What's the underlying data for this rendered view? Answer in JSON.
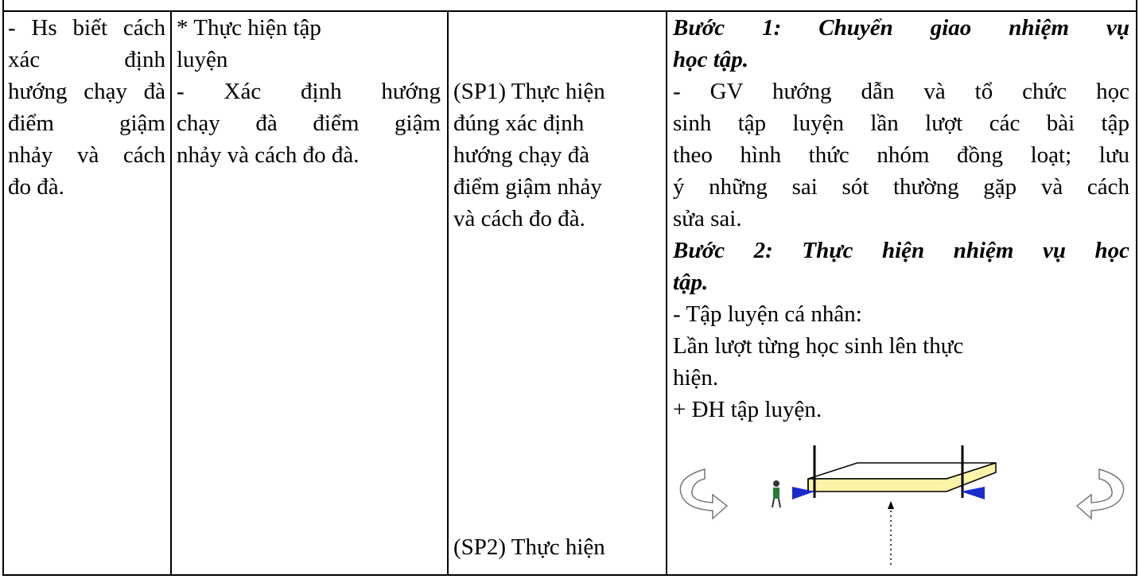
{
  "table": {
    "rows": [
      {
        "cells": [
          {
            "paragraphs": [
              {
                "lines": [
                  "- Hs biết cách",
                  "xác định",
                  "hướng chạy đà",
                  "điểm giậm",
                  "nhảy và cách",
                  "đo đà."
                ]
              }
            ]
          },
          {
            "paragraphs": [
              {
                "lines": [
                  "* Thực hiện tập",
                  "luyện"
                ]
              },
              {
                "lines": [
                  "- Xác định hướng",
                  "chạy đà điểm giậm",
                  "nhảy và cách đo đà."
                ]
              }
            ]
          },
          {
            "paragraphs": [
              {
                "lines": [
                  "(SP1) Thực hiện",
                  "đúng xác định",
                  "hướng chạy đà",
                  "điểm giậm nhảy",
                  "và cách đo đà."
                ]
              },
              {
                "lines": [
                  "(SP2) Thực hiện"
                ]
              }
            ]
          },
          {
            "paragraphs": [
              {
                "lines": [
                  "Bước 1: Chuyển giao nhiệm vụ",
                  "học tập."
                ]
              },
              {
                "lines": [
                  "- GV hướng dẫn và tổ chức học",
                  "sinh tập luyện lần lượt các bài tập",
                  "theo hình thức nhóm đồng loạt; lưu",
                  "ý những sai sót thường gặp và cách",
                  "sửa sai."
                ]
              },
              {
                "lines": [
                  "Bước 2: Thực hiện nhiệm vụ học",
                  "tập."
                ]
              },
              {
                "lines": [
                  "- Tập luyện cá nhân:"
                ]
              },
              {
                "lines": [
                  "Lần lượt từng học sinh lên thực",
                  "hiện."
                ]
              },
              {
                "lines": [
                  "+ ĐH tập luyện."
                ]
              }
            ]
          }
        ]
      }
    ]
  }
}
